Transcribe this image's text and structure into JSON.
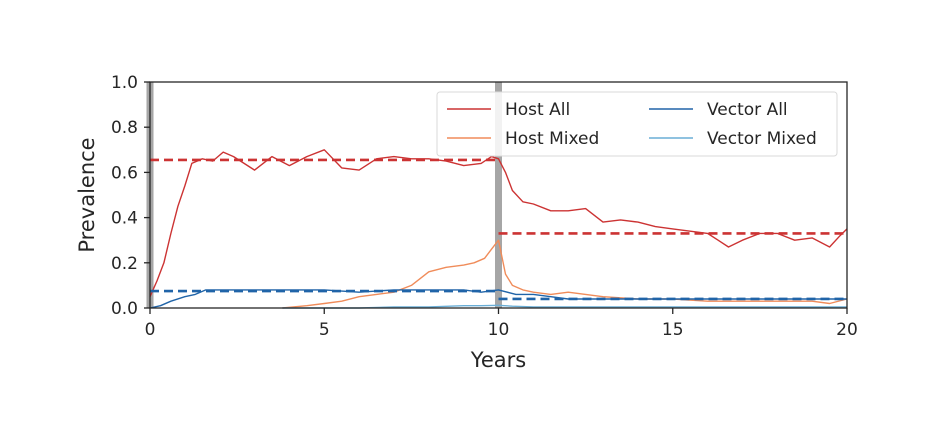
{
  "chart_data": {
    "type": "line",
    "title": "",
    "xlabel": "Years",
    "ylabel": "Prevalence",
    "xlim": [
      0,
      20
    ],
    "ylim": [
      0,
      1.0
    ],
    "xticks": [
      0,
      5,
      10,
      15,
      20
    ],
    "xtick_labels": [
      "0",
      "5",
      "10",
      "15",
      "20"
    ],
    "yticks": [
      0.0,
      0.2,
      0.4,
      0.6,
      0.8,
      1.0
    ],
    "ytick_labels": [
      "0.0",
      "0.2",
      "0.4",
      "0.6",
      "0.8",
      "1.0"
    ],
    "grid": false,
    "legend_position": "top-right",
    "legend_columns": 2,
    "event_lines_x": [
      0,
      10
    ],
    "series": [
      {
        "name": "Host All",
        "color": "#cc3333",
        "x": [
          0,
          0.2,
          0.4,
          0.6,
          0.8,
          1.0,
          1.2,
          1.5,
          1.8,
          2.1,
          2.4,
          2.7,
          3.0,
          3.5,
          4.0,
          4.5,
          5.0,
          5.5,
          6.0,
          6.5,
          7.0,
          7.5,
          8.0,
          8.5,
          9.0,
          9.5,
          9.8,
          10.0,
          10.2,
          10.4,
          10.7,
          11.0,
          11.5,
          12.0,
          12.5,
          13.0,
          13.5,
          14.0,
          14.5,
          15.0,
          15.5,
          16.0,
          16.3,
          16.6,
          17.0,
          17.5,
          18.0,
          18.5,
          19.0,
          19.5,
          19.8,
          20.0
        ],
        "values": [
          0.05,
          0.12,
          0.2,
          0.33,
          0.45,
          0.54,
          0.64,
          0.66,
          0.65,
          0.69,
          0.67,
          0.64,
          0.61,
          0.67,
          0.63,
          0.67,
          0.7,
          0.62,
          0.61,
          0.66,
          0.67,
          0.66,
          0.66,
          0.65,
          0.63,
          0.64,
          0.67,
          0.66,
          0.6,
          0.52,
          0.47,
          0.46,
          0.43,
          0.43,
          0.44,
          0.38,
          0.39,
          0.38,
          0.36,
          0.35,
          0.34,
          0.33,
          0.3,
          0.27,
          0.3,
          0.33,
          0.33,
          0.3,
          0.31,
          0.27,
          0.32,
          0.35
        ]
      },
      {
        "name": "Host Mixed",
        "color": "#f08c5a",
        "x": [
          3.8,
          4.5,
          5.0,
          5.5,
          6.0,
          6.5,
          7.0,
          7.5,
          8.0,
          8.5,
          9.0,
          9.3,
          9.6,
          9.8,
          10.0,
          10.2,
          10.4,
          10.7,
          11.0,
          11.5,
          12.0,
          12.5,
          13.0,
          14.0,
          15.0,
          16.0,
          17.0,
          18.0,
          19.0,
          19.5,
          20.0
        ],
        "values": [
          0.0,
          0.01,
          0.02,
          0.03,
          0.05,
          0.06,
          0.07,
          0.1,
          0.16,
          0.18,
          0.19,
          0.2,
          0.22,
          0.26,
          0.3,
          0.15,
          0.1,
          0.08,
          0.07,
          0.06,
          0.07,
          0.06,
          0.05,
          0.04,
          0.04,
          0.03,
          0.03,
          0.03,
          0.03,
          0.02,
          0.04
        ]
      },
      {
        "name": "Vector All",
        "color": "#2064a8",
        "x": [
          0,
          0.3,
          0.6,
          1.0,
          1.3,
          1.6,
          2.0,
          3.0,
          4.0,
          5.0,
          6.0,
          7.0,
          8.0,
          9.0,
          9.5,
          10.0,
          10.5,
          11.0,
          11.5,
          12.0,
          12.5,
          13.0,
          14.0,
          15.0,
          16.0,
          17.0,
          18.0,
          19.0,
          19.5,
          20.0
        ],
        "values": [
          0.0,
          0.01,
          0.03,
          0.05,
          0.06,
          0.08,
          0.08,
          0.08,
          0.08,
          0.08,
          0.07,
          0.08,
          0.08,
          0.08,
          0.07,
          0.08,
          0.06,
          0.06,
          0.05,
          0.04,
          0.04,
          0.04,
          0.04,
          0.04,
          0.04,
          0.04,
          0.04,
          0.04,
          0.04,
          0.04
        ]
      },
      {
        "name": "Vector Mixed",
        "color": "#6aaed6",
        "x": [
          3.8,
          5.0,
          6.0,
          7.0,
          8.0,
          9.0,
          9.5,
          10.0,
          10.4,
          11.0,
          12.0,
          13.0,
          14.0,
          15.0,
          16.0,
          17.0,
          18.0,
          19.0,
          20.0
        ],
        "values": [
          0.0,
          0.0,
          0.0,
          0.005,
          0.005,
          0.01,
          0.01,
          0.012,
          0.008,
          0.005,
          0.005,
          0.005,
          0.005,
          0.005,
          0.005,
          0.005,
          0.005,
          0.005,
          0.005
        ]
      }
    ],
    "reference_lines": [
      {
        "color": "#cc3333",
        "y": 0.655,
        "x_range": [
          0,
          10
        ]
      },
      {
        "color": "#cc3333",
        "y": 0.33,
        "x_range": [
          10,
          20
        ]
      },
      {
        "color": "#2064a8",
        "y": 0.075,
        "x_range": [
          0,
          10
        ]
      },
      {
        "color": "#2064a8",
        "y": 0.04,
        "x_range": [
          10,
          20
        ]
      }
    ]
  }
}
